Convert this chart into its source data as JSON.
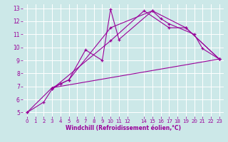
{
  "xlabel": "Windchill (Refroidissement éolien,°C)",
  "bg_color": "#cce8e8",
  "line_color": "#990099",
  "grid_color": "#ffffff",
  "xlim": [
    -0.5,
    23.5
  ],
  "ylim": [
    4.7,
    13.3
  ],
  "xticks": [
    0,
    1,
    2,
    3,
    4,
    5,
    6,
    7,
    8,
    9,
    10,
    11,
    12,
    14,
    15,
    16,
    17,
    18,
    19,
    20,
    21,
    22,
    23
  ],
  "yticks": [
    5,
    6,
    7,
    8,
    9,
    10,
    11,
    12,
    13
  ],
  "series": [
    {
      "x": [
        0,
        2,
        3,
        10,
        14,
        17,
        19,
        23
      ],
      "y": [
        5.0,
        5.8,
        6.8,
        10.5,
        12.8,
        11.5,
        11.5,
        9.1
      ]
    },
    {
      "x": [
        3,
        4,
        5,
        7,
        9,
        10,
        11,
        15,
        16,
        17,
        20,
        21,
        23
      ],
      "y": [
        6.8,
        7.2,
        7.5,
        9.8,
        9.0,
        12.9,
        10.6,
        12.8,
        12.2,
        11.8,
        11.0,
        9.9,
        9.1
      ]
    },
    {
      "x": [
        3,
        4,
        5,
        10,
        15,
        19,
        23
      ],
      "y": [
        6.9,
        7.2,
        7.5,
        11.5,
        12.8,
        11.5,
        9.1
      ]
    },
    {
      "x": [
        0,
        3,
        23
      ],
      "y": [
        5.0,
        6.9,
        9.1
      ]
    }
  ]
}
